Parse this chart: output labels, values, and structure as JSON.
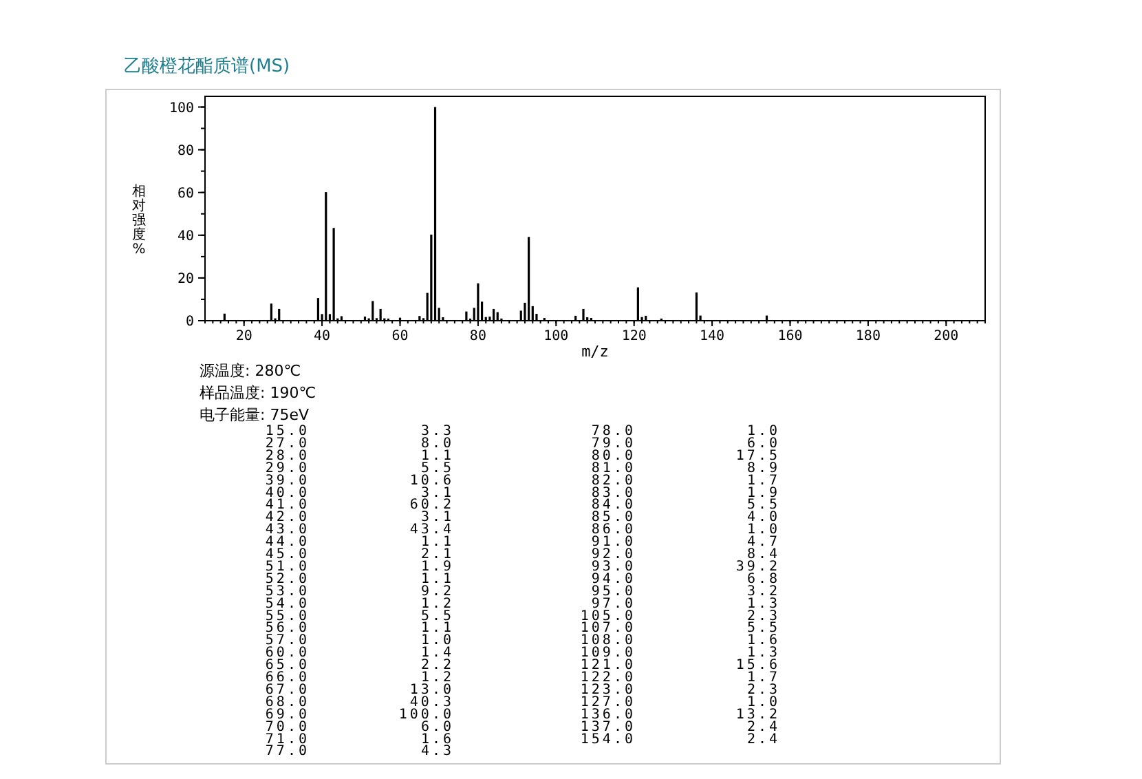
{
  "chart_data": {
    "type": "bar",
    "title": "乙酸橙花酯质谱(MS)",
    "xlabel": "m/z",
    "ylabel": "相对强度%",
    "x": [
      15,
      27,
      28,
      29,
      39,
      40,
      41,
      42,
      43,
      44,
      45,
      51,
      52,
      53,
      54,
      55,
      56,
      57,
      60,
      65,
      66,
      67,
      68,
      69,
      70,
      71,
      77,
      78,
      79,
      80,
      81,
      82,
      83,
      84,
      85,
      86,
      91,
      92,
      93,
      94,
      95,
      97,
      105,
      107,
      108,
      109,
      121,
      122,
      123,
      127,
      136,
      137,
      154
    ],
    "values": [
      3.3,
      8.0,
      1.1,
      5.5,
      10.6,
      3.1,
      60.2,
      3.1,
      43.4,
      1.1,
      2.1,
      1.9,
      1.1,
      9.2,
      1.2,
      5.5,
      1.1,
      1.0,
      1.4,
      2.2,
      1.2,
      13.0,
      40.3,
      100.0,
      6.0,
      1.6,
      4.3,
      1.0,
      6.0,
      17.5,
      8.9,
      1.7,
      1.9,
      5.5,
      4.0,
      1.0,
      4.7,
      8.4,
      39.2,
      6.8,
      3.2,
      1.3,
      2.3,
      5.5,
      1.6,
      1.3,
      15.6,
      1.7,
      2.3,
      1.0,
      13.2,
      2.4,
      2.4
    ],
    "color": "#000000",
    "xlim": [
      10,
      210
    ],
    "xticks": [
      20,
      40,
      60,
      80,
      100,
      120,
      140,
      160,
      180,
      200
    ],
    "ylim": [
      0,
      105
    ],
    "yticks": [
      0,
      20,
      40,
      60,
      80,
      100
    ],
    "annotations": [
      "源温度: 280℃",
      "样品温度: 190℃",
      "电子能量: 75eV",
      "15.0",
      "3.3",
      "27.0",
      "8.0",
      "28.0",
      "1.1",
      "29.0",
      "5.5",
      "39.0",
      "10.6",
      "40.0",
      "3.1",
      "41.0",
      "60.2",
      "42.0",
      "3.1",
      "43.0",
      "43.4",
      "44.0",
      "1.1",
      "45.0",
      "2.1",
      "51.0",
      "1.9",
      "52.0",
      "1.1",
      "53.0",
      "9.2",
      "54.0",
      "1.2",
      "55.0",
      "5.5",
      "56.0",
      "1.1",
      "57.0",
      "1.0",
      "60.0",
      "1.4",
      "65.0",
      "2.2",
      "66.0",
      "1.2",
      "67.0",
      "13.0",
      "68.0",
      "40.3",
      "69.0",
      "100.0",
      "70.0",
      "6.0",
      "71.0",
      "1.6",
      "77.0",
      "4.3",
      "78.0",
      "1.0",
      "79.0",
      "6.0",
      "80.0",
      "17.5",
      "81.0",
      "8.9",
      "82.0",
      "1.7",
      "83.0",
      "1.9",
      "84.0",
      "5.5",
      "85.0",
      "4.0",
      "86.0",
      "1.0",
      "91.0",
      "4.7",
      "92.0",
      "8.4",
      "93.0",
      "39.2",
      "94.0",
      "6.8",
      "95.0",
      "3.2",
      "97.0",
      "1.3",
      "105.0",
      "2.3",
      "107.0",
      "5.5",
      "108.0",
      "1.6",
      "109.0",
      "1.3",
      "121.0",
      "15.6",
      "122.0",
      "1.7",
      "123.0",
      "2.3",
      "127.0",
      "1.0",
      "136.0",
      "13.2",
      "137.0",
      "2.4",
      "154.0",
      "2.4"
    ]
  }
}
